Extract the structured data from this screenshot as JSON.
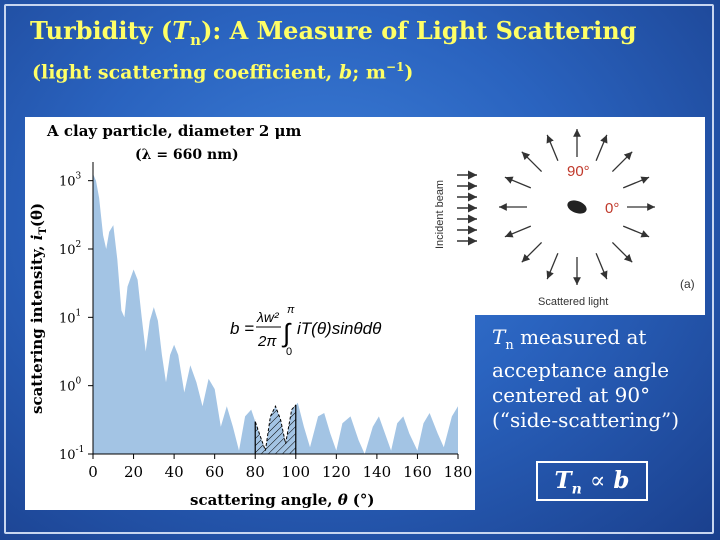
{
  "slide": {
    "title_prefix": "Turbidity (",
    "title_symbol": "T",
    "title_sub": "n",
    "title_suffix": "): A Measure of Light Scattering",
    "subtitle_prefix": "(light scattering coefficient, ",
    "subtitle_var": "b",
    "subtitle_suffix": "; m",
    "subtitle_sup": "−1",
    "subtitle_end": ")"
  },
  "chart": {
    "heading": "A clay particle, diameter 2 μm",
    "wavelength": "(λ = 660 nm)",
    "ylabel_text": "scattering intensity, ",
    "ylabel_var": "i",
    "ylabel_sub": "T",
    "ylabel_arg": "(θ)",
    "xlabel_text": "scattering angle, ",
    "xlabel_var": "θ",
    "xlabel_unit": "(°)",
    "equation": {
      "lhs": "b =",
      "frac_num": "λw²",
      "frac_den": "2π",
      "upper_limit": "π",
      "lower_limit": "0",
      "integrand": "iT(θ)sinθdθ"
    }
  },
  "scatter_diagram": {
    "beam_label": "Incident beam",
    "angle_90": "90°",
    "angle_0": "0°",
    "scattered_label": "Scattered light",
    "panel_tag": "(a)"
  },
  "annotation": {
    "line1_var": "T",
    "line1_sub": "n",
    "line1_rest": " measured at",
    "line2": "acceptance angle",
    "line3": "centered at 90°",
    "line4": "(“side-scattering”)"
  },
  "relation": {
    "var": "T",
    "sub": "n",
    "symbol": "∝",
    "rhs": "b"
  },
  "colors": {
    "background": "#2a63bf",
    "title": "#ffff66",
    "fill": "#a3c4e4",
    "axis": "#000000"
  },
  "chart_data": {
    "type": "area",
    "title": "A clay particle, diameter 2 μm",
    "subtitle": "(λ = 660 nm)",
    "xlabel": "scattering angle, θ (°)",
    "ylabel": "scattering intensity, iT(θ)",
    "xlim": [
      0,
      180
    ],
    "ylim_log10": [
      -1,
      3.2
    ],
    "y_scale": "log",
    "x_ticks": [
      0,
      20,
      40,
      60,
      80,
      100,
      120,
      140,
      160,
      180
    ],
    "y_tick_labels": [
      {
        "base": "10",
        "exp": "3",
        "value_log10": 3
      },
      {
        "base": "10",
        "exp": "2",
        "value_log10": 2
      },
      {
        "base": "10",
        "exp": "1",
        "value_log10": 1
      },
      {
        "base": "10",
        "exp": "0",
        "value_log10": 0
      },
      {
        "base": "10",
        "exp": "-1",
        "value_log10": -1
      }
    ],
    "highlight_range": [
      80,
      100
    ],
    "series": [
      {
        "x": [
          0,
          1.5,
          3,
          5,
          6.5,
          8,
          10,
          12,
          14,
          15.5,
          17,
          20,
          22,
          24,
          26,
          28,
          30,
          32,
          34,
          36,
          38,
          40,
          42,
          45,
          48,
          51,
          54,
          57,
          60,
          63,
          66,
          69,
          72,
          75,
          78,
          82,
          85,
          87.5,
          90,
          92.5,
          95,
          98,
          101,
          104,
          107,
          111,
          114,
          117,
          120,
          123,
          127,
          131,
          134,
          138,
          141,
          144,
          147,
          150,
          153,
          156,
          160,
          163,
          166,
          170,
          173,
          177,
          180
        ],
        "log10_y": [
          3.1,
          3.0,
          2.75,
          2.2,
          2.0,
          2.25,
          2.35,
          1.85,
          1.1,
          1.0,
          1.45,
          1.7,
          1.55,
          1.0,
          0.5,
          0.95,
          1.15,
          0.95,
          0.45,
          0.05,
          0.45,
          0.6,
          0.45,
          -0.1,
          0.3,
          0.05,
          -0.3,
          0.1,
          -0.05,
          -0.6,
          -0.3,
          -0.6,
          -0.95,
          -0.45,
          -0.35,
          -0.7,
          -0.95,
          -0.45,
          -0.3,
          -0.5,
          -0.85,
          -0.35,
          -0.25,
          -0.6,
          -0.9,
          -0.45,
          -0.4,
          -0.7,
          -0.95,
          -0.55,
          -0.45,
          -0.8,
          -1.0,
          -0.6,
          -0.45,
          -0.7,
          -0.95,
          -0.55,
          -0.45,
          -0.7,
          -0.95,
          -0.55,
          -0.4,
          -0.7,
          -0.9,
          -0.45,
          -0.3
        ]
      }
    ]
  }
}
